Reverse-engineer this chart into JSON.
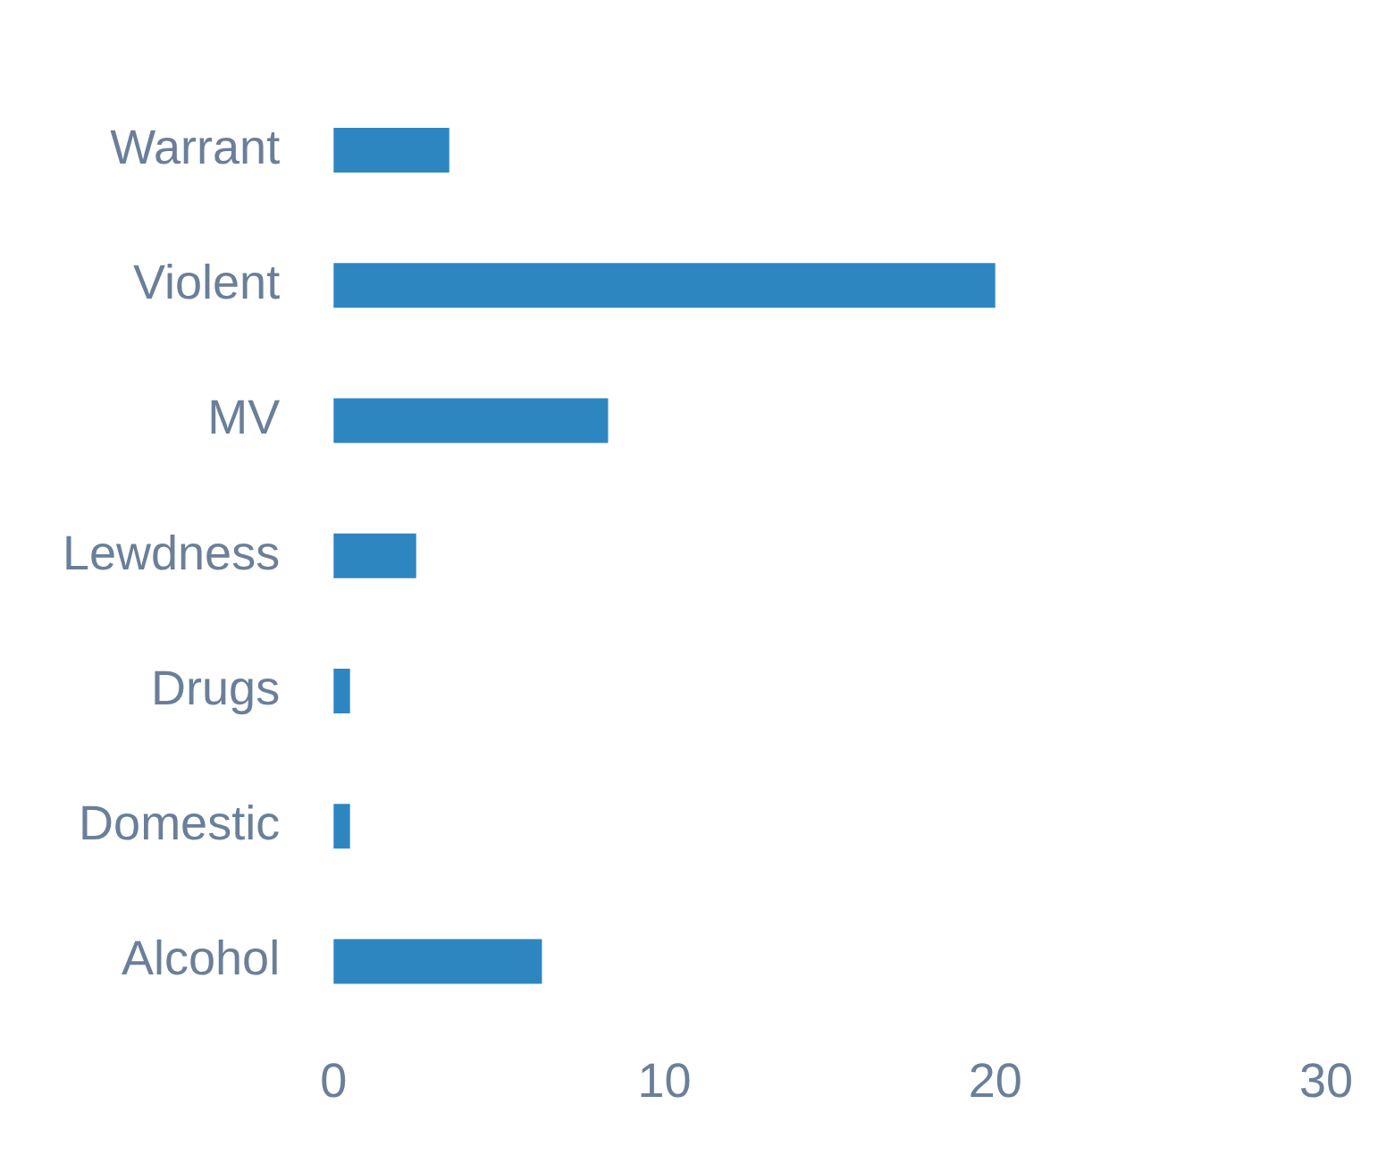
{
  "chart_data": {
    "type": "bar",
    "orientation": "horizontal",
    "categories": [
      "Warrant",
      "Violent",
      "MV",
      "Lewdness",
      "Drugs",
      "Domestic",
      "Alcohol"
    ],
    "values": [
      3.5,
      20,
      8.3,
      2.5,
      0.5,
      0.5,
      6.3
    ],
    "color": "#2e86c1",
    "xlim": [
      0,
      30
    ],
    "xticks": [
      0,
      10,
      20,
      30
    ],
    "grid": false,
    "legend": false
  }
}
